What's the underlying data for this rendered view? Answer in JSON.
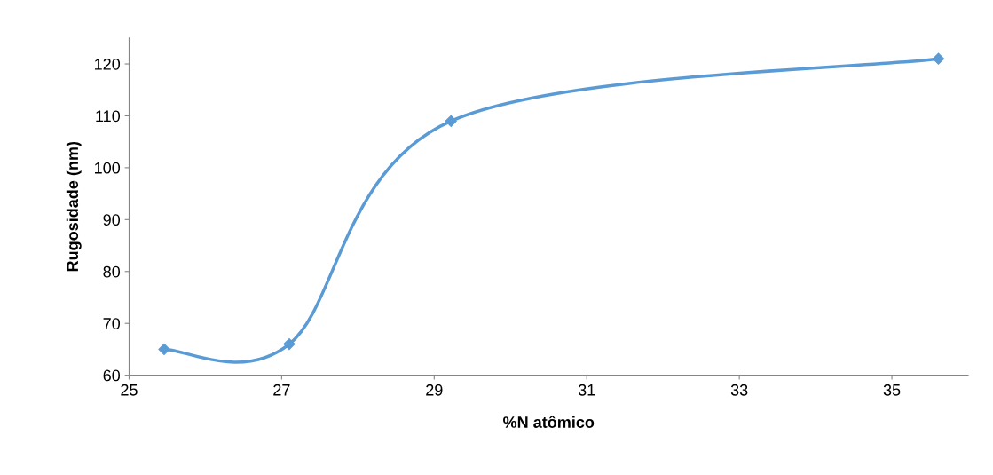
{
  "chart_data": {
    "type": "line",
    "xlabel": "%N atômico",
    "ylabel": "Rugosidade (nm)",
    "x": [
      25.46,
      27.1,
      29.22,
      35.61
    ],
    "series": [
      {
        "color": "#5b9bd5",
        "values": [
          65,
          66,
          109,
          121
        ]
      }
    ],
    "xlim": [
      25,
      36
    ],
    "xticks": [
      25,
      27,
      29,
      31,
      33,
      35
    ],
    "ylim": [
      60,
      125
    ],
    "yticks": [
      60,
      70,
      80,
      90,
      100,
      110,
      120
    ],
    "marker": "diamond",
    "line_style": "solid",
    "grid": false,
    "legend": false
  }
}
